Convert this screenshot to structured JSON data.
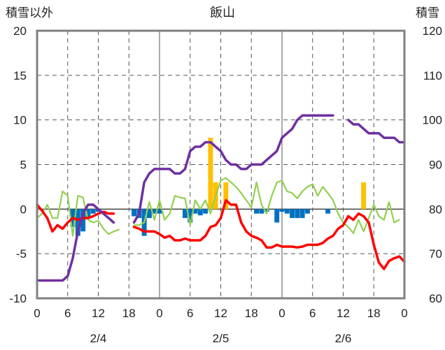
{
  "chart_data": {
    "type": "bar+line",
    "title": "飯山",
    "y_left_label": "積雪以外",
    "y_right_label": "積雪",
    "y_left_range": [
      -10,
      20
    ],
    "y_right_range": [
      60,
      120
    ],
    "y_left_ticks": [
      "20",
      "15",
      "10",
      "5",
      "0",
      "-5",
      "-10"
    ],
    "y_right_ticks": [
      "120",
      "110",
      "100",
      "90",
      "80",
      "70",
      "60"
    ],
    "x_range_hours": [
      0,
      72
    ],
    "x_tick_labels": [
      "0",
      "6",
      "12",
      "18",
      "0",
      "6",
      "12",
      "18",
      "0",
      "6",
      "12",
      "18",
      "0"
    ],
    "date_labels": [
      "2/4",
      "2/5",
      "2/6"
    ],
    "grid": true,
    "colors": {
      "snow_depth": "#7030a0",
      "temperature": "#ff0000",
      "wind": "#92d050",
      "snowfall": "#ffc000",
      "precip": "#0070c0",
      "grid": "#555555",
      "frame": "#808080"
    },
    "bars": {
      "snowfall": [
        [
          34,
          8
        ],
        [
          35,
          3
        ],
        [
          37,
          3
        ],
        [
          64,
          3
        ]
      ],
      "precip": [
        [
          7,
          -2
        ],
        [
          8,
          -3
        ],
        [
          9,
          -2.5
        ],
        [
          10,
          -1
        ],
        [
          11,
          -0.5
        ],
        [
          12,
          -0.3
        ],
        [
          19,
          -0.8
        ],
        [
          20,
          -1
        ],
        [
          21,
          -3
        ],
        [
          22,
          -1
        ],
        [
          23,
          -0.5
        ],
        [
          24,
          -0.5
        ],
        [
          29,
          -1
        ],
        [
          30,
          -1.5
        ],
        [
          31,
          -0.5
        ],
        [
          32,
          -0.7
        ],
        [
          33,
          -0.5
        ],
        [
          43,
          -0.5
        ],
        [
          44,
          -0.5
        ],
        [
          45,
          -0.3
        ],
        [
          47,
          -1.5
        ],
        [
          48,
          -0.3
        ],
        [
          49,
          -0.5
        ],
        [
          50,
          -1
        ],
        [
          51,
          -1
        ],
        [
          52,
          -1
        ],
        [
          53,
          -0.5
        ],
        [
          57,
          -0.5
        ]
      ]
    },
    "series": [
      {
        "key": "snow_depth",
        "axis": "right",
        "segments": [
          [
            [
              0,
              64
            ],
            [
              1,
              64
            ],
            [
              2,
              64
            ],
            [
              3,
              64
            ],
            [
              4,
              64
            ],
            [
              5,
              64
            ],
            [
              6,
              65
            ],
            [
              7,
              69
            ],
            [
              8,
              75
            ],
            [
              9,
              79
            ],
            [
              10,
              81
            ],
            [
              11,
              81
            ],
            [
              12,
              80
            ],
            [
              13,
              79
            ],
            [
              14,
              78
            ],
            [
              15,
              77
            ]
          ],
          [
            [
              19,
              77
            ],
            [
              20,
              79
            ],
            [
              21,
              86
            ],
            [
              22,
              88
            ],
            [
              23,
              89
            ],
            [
              24,
              89
            ],
            [
              25,
              89
            ],
            [
              26,
              89
            ],
            [
              27,
              88
            ],
            [
              28,
              88
            ],
            [
              29,
              89
            ],
            [
              30,
              93
            ],
            [
              31,
              94
            ],
            [
              32,
              94
            ],
            [
              33,
              95
            ],
            [
              34,
              95
            ],
            [
              35,
              94
            ],
            [
              36,
              93
            ],
            [
              37,
              91
            ],
            [
              38,
              90
            ],
            [
              39,
              90
            ],
            [
              40,
              89
            ],
            [
              41,
              89
            ],
            [
              42,
              90
            ],
            [
              43,
              90
            ],
            [
              44,
              90
            ],
            [
              45,
              91
            ],
            [
              46,
              92
            ],
            [
              47,
              93
            ],
            [
              48,
              96
            ],
            [
              49,
              97
            ],
            [
              50,
              98
            ],
            [
              51,
              100
            ],
            [
              52,
              101
            ],
            [
              53,
              101
            ],
            [
              54,
              101
            ],
            [
              55,
              101
            ],
            [
              56,
              101
            ],
            [
              57,
              101
            ],
            [
              58,
              101
            ]
          ],
          [
            [
              61,
              100
            ],
            [
              62,
              99
            ],
            [
              63,
              99
            ],
            [
              64,
              98
            ],
            [
              65,
              97
            ],
            [
              66,
              97
            ],
            [
              67,
              97
            ],
            [
              68,
              96
            ],
            [
              69,
              96
            ],
            [
              70,
              96
            ],
            [
              71,
              95
            ],
            [
              72,
              95
            ]
          ]
        ]
      },
      {
        "key": "temperature",
        "axis": "left",
        "segments": [
          [
            [
              0,
              0.5
            ],
            [
              1,
              -0.2
            ],
            [
              2,
              -1
            ],
            [
              3,
              -2.5
            ],
            [
              4,
              -1.8
            ],
            [
              5,
              -2.2
            ],
            [
              6,
              -1.5
            ],
            [
              7,
              -1
            ],
            [
              8,
              -1.2
            ],
            [
              9,
              -1
            ],
            [
              10,
              -1
            ],
            [
              11,
              -0.8
            ],
            [
              12,
              -0.5
            ],
            [
              13,
              -0.3
            ],
            [
              14,
              -0.5
            ],
            [
              15,
              -0.5
            ]
          ],
          [
            [
              19,
              -2
            ],
            [
              20,
              -2.2
            ],
            [
              21,
              -2.5
            ],
            [
              22,
              -2.5
            ],
            [
              23,
              -2.5
            ],
            [
              24,
              -2.8
            ],
            [
              25,
              -3.2
            ],
            [
              26,
              -3
            ],
            [
              27,
              -3.5
            ],
            [
              28,
              -3.5
            ],
            [
              29,
              -3.3
            ],
            [
              30,
              -3.5
            ],
            [
              31,
              -3.5
            ],
            [
              32,
              -3.5
            ],
            [
              33,
              -3
            ],
            [
              34,
              -2
            ],
            [
              35,
              -1.8
            ],
            [
              36,
              -1
            ],
            [
              37,
              1
            ],
            [
              38,
              0.5
            ],
            [
              39,
              0.5
            ],
            [
              40,
              -1.5
            ],
            [
              41,
              -2.5
            ],
            [
              42,
              -3
            ],
            [
              43,
              -3.2
            ],
            [
              44,
              -3.5
            ],
            [
              45,
              -4.3
            ],
            [
              46,
              -4.3
            ],
            [
              47,
              -4
            ],
            [
              48,
              -4.2
            ],
            [
              49,
              -4.2
            ],
            [
              50,
              -4.2
            ],
            [
              51,
              -4.3
            ],
            [
              52,
              -4.2
            ],
            [
              53,
              -4
            ],
            [
              54,
              -4
            ],
            [
              55,
              -4
            ],
            [
              56,
              -3.8
            ],
            [
              57,
              -3.3
            ],
            [
              58,
              -3
            ],
            [
              59,
              -2.2
            ],
            [
              60,
              -1.8
            ],
            [
              61,
              -0.8
            ],
            [
              62,
              -1.2
            ],
            [
              63,
              -0.5
            ],
            [
              64,
              -0.8
            ],
            [
              65,
              -1.5
            ],
            [
              66,
              -4
            ],
            [
              67,
              -6
            ],
            [
              68,
              -6.7
            ],
            [
              69,
              -5.8
            ],
            [
              70,
              -5.5
            ],
            [
              71,
              -5.3
            ],
            [
              72,
              -5.9
            ]
          ]
        ]
      },
      {
        "key": "wind",
        "axis": "left",
        "segments": [
          [
            [
              0,
              -1
            ],
            [
              1,
              -0.5
            ],
            [
              2,
              0.5
            ],
            [
              3,
              -1
            ],
            [
              4,
              -1
            ],
            [
              5,
              2
            ],
            [
              6,
              1.5
            ],
            [
              7,
              -3
            ],
            [
              8,
              1.5
            ],
            [
              9,
              1.3
            ],
            [
              10,
              -1.2
            ],
            [
              11,
              -1.5
            ],
            [
              12,
              -1.3
            ],
            [
              13,
              -2.2
            ],
            [
              14,
              -2.8
            ],
            [
              15,
              -2.5
            ],
            [
              16,
              -2.3
            ]
          ],
          [
            [
              19,
              -1.8
            ],
            [
              20,
              -1.8
            ],
            [
              21,
              -1.5
            ],
            [
              22,
              0.8
            ],
            [
              23,
              -1.2
            ],
            [
              24,
              1
            ],
            [
              25,
              -1.2
            ],
            [
              26,
              -0.5
            ],
            [
              27,
              1.5
            ],
            [
              28,
              1.3
            ],
            [
              29,
              1.2
            ],
            [
              30,
              -1.8
            ],
            [
              31,
              1
            ],
            [
              32,
              0
            ],
            [
              33,
              1
            ],
            [
              34,
              -0.5
            ],
            [
              35,
              1.5
            ],
            [
              36,
              3.2
            ],
            [
              37,
              3.5
            ],
            [
              38,
              3
            ],
            [
              39,
              2.5
            ],
            [
              40,
              1.8
            ],
            [
              41,
              1
            ],
            [
              42,
              0.2
            ],
            [
              43,
              3
            ],
            [
              44,
              0.5
            ],
            [
              45,
              -0.5
            ],
            [
              46,
              1.5
            ],
            [
              47,
              3
            ],
            [
              48,
              3.2
            ],
            [
              49,
              2
            ],
            [
              50,
              1.8
            ],
            [
              51,
              1.2
            ],
            [
              52,
              2
            ],
            [
              53,
              2.5
            ],
            [
              54,
              2.8
            ],
            [
              55,
              1.5
            ],
            [
              56,
              2.5
            ],
            [
              57,
              1.8
            ],
            [
              58,
              1
            ],
            [
              59,
              -0.5
            ],
            [
              60,
              -1.5
            ],
            [
              61,
              -2
            ],
            [
              62,
              -2.7
            ],
            [
              63,
              -1.2
            ],
            [
              64,
              -2.5
            ],
            [
              65,
              -1
            ],
            [
              66,
              0.5
            ],
            [
              67,
              -0.8
            ],
            [
              68,
              -1.2
            ],
            [
              69,
              0.8
            ],
            [
              70,
              -1.5
            ],
            [
              71,
              -1.2
            ]
          ]
        ]
      }
    ]
  }
}
